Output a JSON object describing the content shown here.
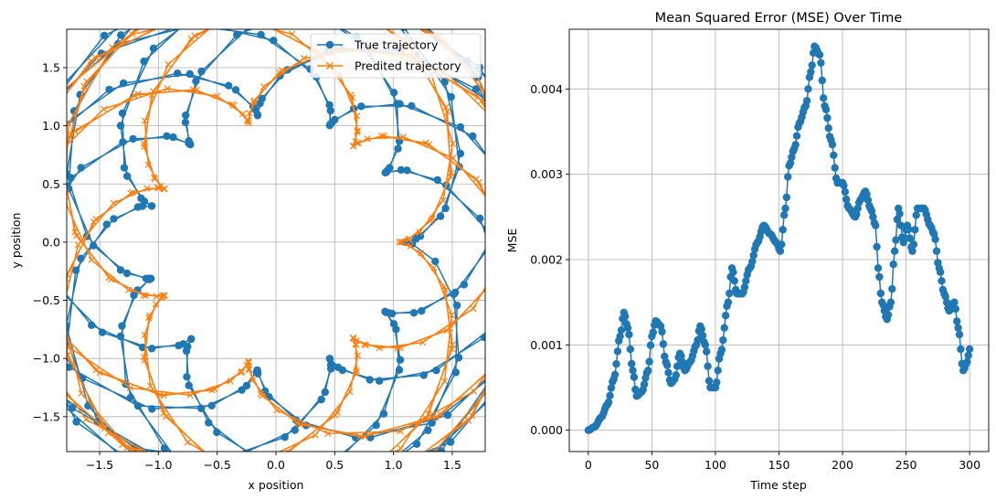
{
  "colors": {
    "true_series": "#1f77b4",
    "pred_series": "#ff7f0e",
    "grid": "#b0b0b0",
    "background": "#ffffff"
  },
  "chart_data": [
    {
      "type": "line",
      "title": "",
      "xlabel": "x position",
      "ylabel": "y position",
      "xlim": [
        -1.78,
        1.78
      ],
      "ylim": [
        -1.8,
        1.83
      ],
      "xticks": [
        -1.5,
        -1.0,
        -0.5,
        0.0,
        0.5,
        1.0,
        1.5
      ],
      "xtick_labels": [
        "−1.5",
        "−1.0",
        "−0.5",
        "0.0",
        "0.5",
        "1.0",
        "1.5"
      ],
      "yticks": [
        -1.5,
        -1.0,
        -0.5,
        0.0,
        0.5,
        1.0,
        1.5
      ],
      "ytick_labels": [
        "−1.5",
        "−1.0",
        "−0.5",
        "0.0",
        "0.5",
        "1.0",
        "1.5"
      ],
      "grid": true,
      "legend": "top-right",
      "series": [
        {
          "name": "True trajectory",
          "marker": "circle",
          "curve": {
            "type": "epitrochoid",
            "R": 1.1,
            "r": 0.6,
            "phase_step": 0.25,
            "count": 300
          }
        },
        {
          "name": "Predited trajectory",
          "marker": "x",
          "curve": {
            "type": "epitrochoid",
            "R": 1.05,
            "r": 0.6,
            "phase_step": 0.25,
            "count": 300
          }
        }
      ]
    },
    {
      "type": "line",
      "title": "Mean Squared Error (MSE) Over Time",
      "xlabel": "Time step",
      "ylabel": "MSE",
      "xlim": [
        -15,
        315
      ],
      "ylim": [
        -0.00025,
        0.0047
      ],
      "xticks": [
        0,
        50,
        100,
        150,
        200,
        250,
        300
      ],
      "xtick_labels": [
        "0",
        "50",
        "100",
        "150",
        "200",
        "250",
        "300"
      ],
      "yticks": [
        0,
        0.001,
        0.002,
        0.003,
        0.004
      ],
      "ytick_labels": [
        "0.000",
        "0.001",
        "0.002",
        "0.003",
        "0.004"
      ],
      "grid": true,
      "series": [
        {
          "marker": "circle",
          "keypoints": [
            [
              0,
              0
            ],
            [
              5,
              4e-05
            ],
            [
              10,
              0.00015
            ],
            [
              15,
              0.0003
            ],
            [
              20,
              0.0006
            ],
            [
              25,
              0.0011
            ],
            [
              28,
              0.00138
            ],
            [
              31,
              0.0012
            ],
            [
              35,
              0.0007
            ],
            [
              38,
              0.0004
            ],
            [
              42,
              0.00045
            ],
            [
              47,
              0.0007
            ],
            [
              50,
              0.0011
            ],
            [
              53,
              0.00128
            ],
            [
              57,
              0.00122
            ],
            [
              61,
              0.0008
            ],
            [
              65,
              0.00055
            ],
            [
              68,
              0.0006
            ],
            [
              72,
              0.0009
            ],
            [
              76,
              0.0007
            ],
            [
              80,
              0.0008
            ],
            [
              85,
              0.001
            ],
            [
              88,
              0.00122
            ],
            [
              92,
              0.001
            ],
            [
              96,
              0.0005
            ],
            [
              100,
              0.0005
            ],
            [
              104,
              0.0009
            ],
            [
              110,
              0.0015
            ],
            [
              113,
              0.0019
            ],
            [
              117,
              0.0016
            ],
            [
              121,
              0.0016
            ],
            [
              127,
              0.0019
            ],
            [
              133,
              0.0022
            ],
            [
              138,
              0.0024
            ],
            [
              143,
              0.0023
            ],
            [
              148,
              0.0022
            ],
            [
              151,
              0.0021
            ],
            [
              155,
              0.0026
            ],
            [
              158,
              0.0031
            ],
            [
              162,
              0.0033
            ],
            [
              166,
              0.0036
            ],
            [
              171,
              0.0038
            ],
            [
              175,
              0.0042
            ],
            [
              178,
              0.0045
            ],
            [
              182,
              0.0044
            ],
            [
              186,
              0.0038
            ],
            [
              191,
              0.0034
            ],
            [
              196,
              0.0029
            ],
            [
              200,
              0.0029
            ],
            [
              205,
              0.0026
            ],
            [
              210,
              0.0025
            ],
            [
              214,
              0.0027
            ],
            [
              218,
              0.0028
            ],
            [
              222,
              0.0026
            ],
            [
              226,
              0.0024
            ],
            [
              228,
              0.0019
            ],
            [
              231,
              0.0015
            ],
            [
              235,
              0.0013
            ],
            [
              238,
              0.0015
            ],
            [
              241,
              0.0021
            ],
            [
              244,
              0.0026
            ],
            [
              248,
              0.0022
            ],
            [
              251,
              0.0024
            ],
            [
              255,
              0.0021
            ],
            [
              259,
              0.0026
            ],
            [
              264,
              0.0026
            ],
            [
              269,
              0.0024
            ],
            [
              272,
              0.0023
            ],
            [
              276,
              0.0019
            ],
            [
              280,
              0.0016
            ],
            [
              284,
              0.0014
            ],
            [
              288,
              0.0015
            ],
            [
              291,
              0.0012
            ],
            [
              295,
              0.0007
            ],
            [
              298,
              0.0008
            ],
            [
              300,
              0.00095
            ]
          ]
        }
      ]
    }
  ]
}
